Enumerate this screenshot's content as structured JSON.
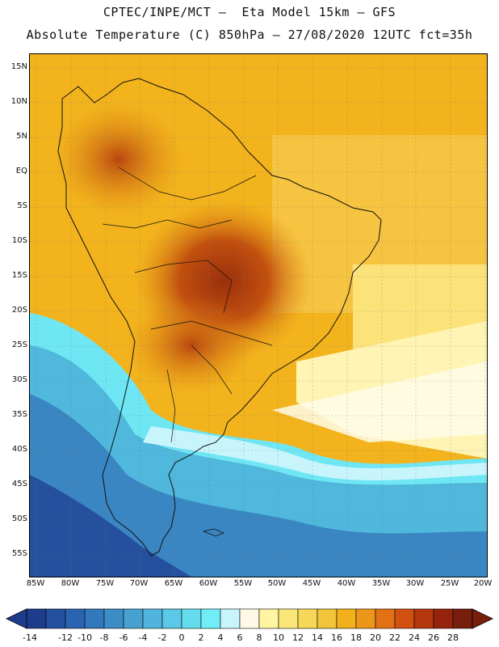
{
  "header": {
    "title_line1": "CPTEC/INPE/MCT –  Eta Model 15km – GFS",
    "title_line2": "Absolute Temperature (C) 850hPa – 27/08/2020 12UTC fct=35h"
  },
  "map": {
    "lat_labels": [
      "15N",
      "10N",
      "5N",
      "EQ",
      "5S",
      "10S",
      "15S",
      "20S",
      "25S",
      "30S",
      "35S",
      "40S",
      "45S",
      "50S",
      "55S"
    ],
    "lon_labels": [
      "85W",
      "80W",
      "75W",
      "70W",
      "65W",
      "60W",
      "55W",
      "50W",
      "45W",
      "40W",
      "35W",
      "30W",
      "25W",
      "20W"
    ],
    "lat_values": [
      15,
      10,
      5,
      0,
      -5,
      -10,
      -15,
      -20,
      -25,
      -30,
      -35,
      -40,
      -45,
      -50,
      -55
    ],
    "lon_values": [
      -85,
      -80,
      -75,
      -70,
      -65,
      -60,
      -55,
      -50,
      -45,
      -40,
      -35,
      -30,
      -25,
      -20
    ]
  },
  "colorbar": {
    "ticks": [
      "-14",
      "-12",
      "-10",
      "-8",
      "-6",
      "-4",
      "-2",
      "0",
      "2",
      "4",
      "6",
      "8",
      "10",
      "12",
      "14",
      "16",
      "18",
      "20",
      "22",
      "24",
      "26",
      "28"
    ],
    "colors": [
      "#1e3c8c",
      "#24509e",
      "#2a64b0",
      "#3278bc",
      "#3c8cc6",
      "#46a0d0",
      "#50b4dc",
      "#5ac8e6",
      "#64dcee",
      "#70eef8",
      "#c8f4fc",
      "#fff8e6",
      "#fff4a0",
      "#fbe67a",
      "#f6d75a",
      "#f2c43a",
      "#f2b01a",
      "#ec961a",
      "#e27014",
      "#d25010",
      "#b4370e",
      "#96230c",
      "#781e0c"
    ]
  }
}
